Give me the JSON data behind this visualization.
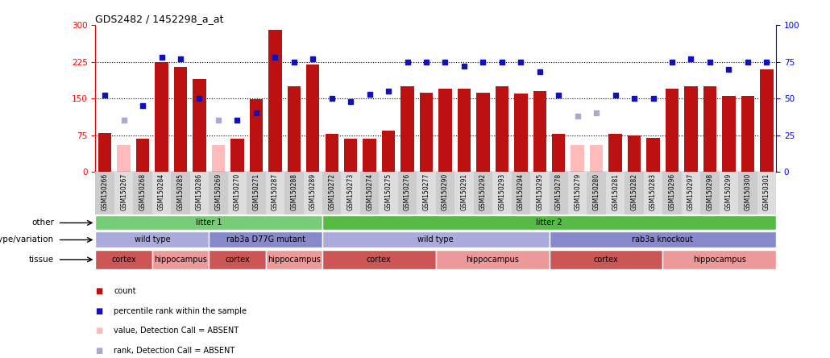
{
  "title": "GDS2482 / 1452298_a_at",
  "samples": [
    "GSM150266",
    "GSM150267",
    "GSM150268",
    "GSM150284",
    "GSM150285",
    "GSM150286",
    "GSM150269",
    "GSM150270",
    "GSM150271",
    "GSM150287",
    "GSM150288",
    "GSM150289",
    "GSM150272",
    "GSM150273",
    "GSM150274",
    "GSM150275",
    "GSM150276",
    "GSM150277",
    "GSM150290",
    "GSM150291",
    "GSM150292",
    "GSM150293",
    "GSM150294",
    "GSM150295",
    "GSM150278",
    "GSM150279",
    "GSM150280",
    "GSM150281",
    "GSM150282",
    "GSM150283",
    "GSM150296",
    "GSM150297",
    "GSM150298",
    "GSM150299",
    "GSM150300",
    "GSM150301"
  ],
  "counts": [
    80,
    55,
    68,
    225,
    215,
    190,
    55,
    68,
    148,
    290,
    175,
    220,
    78,
    68,
    68,
    85,
    175,
    162,
    170,
    170,
    162,
    175,
    160,
    165,
    78,
    55,
    55,
    78,
    75,
    70,
    170,
    175,
    175,
    155,
    155,
    210
  ],
  "absent_count": [
    false,
    true,
    false,
    false,
    false,
    false,
    true,
    false,
    false,
    false,
    false,
    false,
    false,
    false,
    false,
    false,
    false,
    false,
    false,
    false,
    false,
    false,
    false,
    false,
    false,
    true,
    true,
    false,
    false,
    false,
    false,
    false,
    false,
    false,
    false,
    false
  ],
  "ranks": [
    52,
    35,
    45,
    78,
    77,
    50,
    35,
    35,
    40,
    78,
    75,
    77,
    50,
    48,
    53,
    55,
    75,
    75,
    75,
    72,
    75,
    75,
    75,
    68,
    52,
    38,
    40,
    52,
    50,
    50,
    75,
    77,
    75,
    70,
    75,
    75
  ],
  "absent_rank": [
    false,
    true,
    false,
    false,
    false,
    false,
    true,
    false,
    false,
    false,
    false,
    false,
    false,
    false,
    false,
    false,
    false,
    false,
    false,
    false,
    false,
    false,
    false,
    false,
    false,
    true,
    true,
    false,
    false,
    false,
    false,
    false,
    false,
    false,
    false,
    false
  ],
  "litter_regions": [
    {
      "label": "litter 1",
      "start": 0,
      "end": 11,
      "color": "#77cc77"
    },
    {
      "label": "litter 2",
      "start": 12,
      "end": 35,
      "color": "#55bb44"
    }
  ],
  "genotype_regions": [
    {
      "label": "wild type",
      "start": 0,
      "end": 5,
      "color": "#aaaadd"
    },
    {
      "label": "rab3a D77G mutant",
      "start": 6,
      "end": 11,
      "color": "#8888cc"
    },
    {
      "label": "wild type",
      "start": 12,
      "end": 23,
      "color": "#aaaadd"
    },
    {
      "label": "rab3a knockout",
      "start": 24,
      "end": 35,
      "color": "#8888cc"
    }
  ],
  "tissue_regions": [
    {
      "label": "cortex",
      "start": 0,
      "end": 2,
      "color": "#cc5555"
    },
    {
      "label": "hippocampus",
      "start": 3,
      "end": 5,
      "color": "#ee9999"
    },
    {
      "label": "cortex",
      "start": 6,
      "end": 8,
      "color": "#cc5555"
    },
    {
      "label": "hippocampus",
      "start": 9,
      "end": 11,
      "color": "#ee9999"
    },
    {
      "label": "cortex",
      "start": 12,
      "end": 17,
      "color": "#cc5555"
    },
    {
      "label": "hippocampus",
      "start": 18,
      "end": 23,
      "color": "#ee9999"
    },
    {
      "label": "cortex",
      "start": 24,
      "end": 29,
      "color": "#cc5555"
    },
    {
      "label": "hippocampus",
      "start": 30,
      "end": 35,
      "color": "#ee9999"
    }
  ],
  "bar_color_dark": "#bb1111",
  "bar_color_absent": "#ffbbbb",
  "rank_color_dark": "#1111bb",
  "rank_color_absent": "#aaaacc",
  "ylim_left": [
    0,
    300
  ],
  "ylim_right": [
    0,
    100
  ],
  "yticks_left": [
    0,
    75,
    150,
    225,
    300
  ],
  "yticks_right": [
    0,
    25,
    50,
    75,
    100
  ],
  "hlines": [
    75,
    150,
    225
  ]
}
